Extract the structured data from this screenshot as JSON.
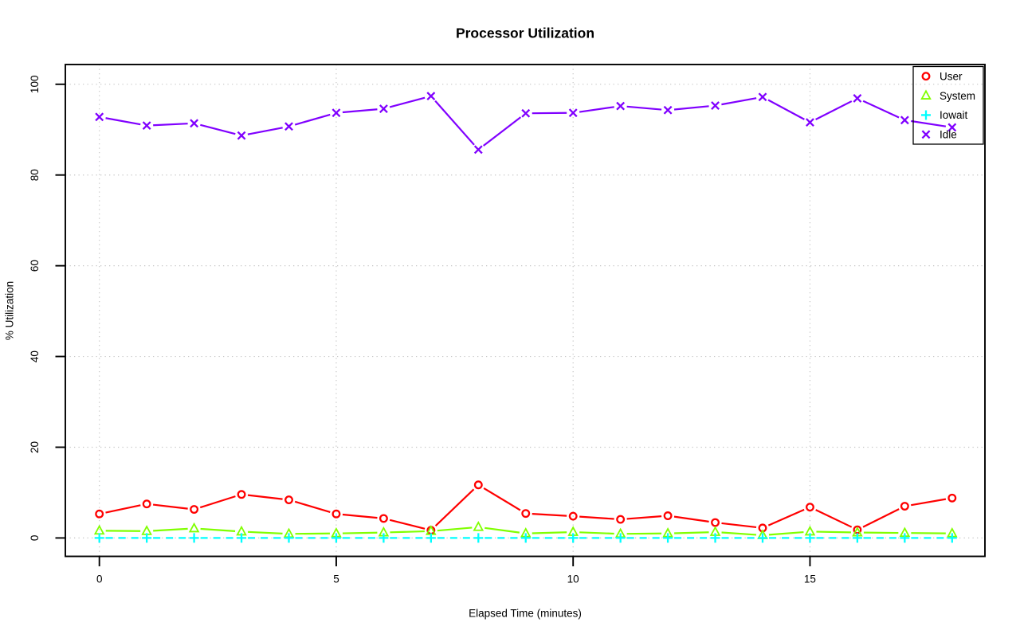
{
  "chart_data": {
    "type": "line",
    "title": "Processor Utilization",
    "xlabel": "Elapsed Time (minutes)",
    "ylabel": "% Utilization",
    "x": [
      0,
      1,
      2,
      3,
      4,
      5,
      6,
      7,
      8,
      9,
      10,
      11,
      12,
      13,
      14,
      15,
      16,
      17,
      18
    ],
    "xlim": [
      0,
      18
    ],
    "ylim": [
      0,
      100
    ],
    "x_ticks": [
      0,
      5,
      10,
      15
    ],
    "y_ticks": [
      0,
      20,
      40,
      60,
      80,
      100
    ],
    "grid": "dotted",
    "legend_position": "topright",
    "series": [
      {
        "name": "User",
        "color": "#FF0000",
        "marker": "circle",
        "line": "solid",
        "values": [
          5.3,
          7.5,
          6.3,
          9.6,
          8.4,
          5.3,
          4.3,
          1.7,
          11.7,
          5.4,
          4.8,
          4.1,
          4.9,
          3.4,
          2.2,
          6.8,
          1.8,
          7.0,
          8.8
        ]
      },
      {
        "name": "System",
        "color": "#80FF00",
        "marker": "triangle",
        "line": "solid",
        "values": [
          1.6,
          1.5,
          2.1,
          1.4,
          0.9,
          1.0,
          1.2,
          1.5,
          2.4,
          1.0,
          1.3,
          0.9,
          1.0,
          1.3,
          0.6,
          1.4,
          1.2,
          1.1,
          1.0
        ]
      },
      {
        "name": "Iowait",
        "color": "#00FFFF",
        "marker": "plus",
        "line": "dashed",
        "values": [
          0,
          0,
          0,
          0,
          0,
          0,
          0,
          0,
          0,
          0,
          0,
          0,
          0,
          0,
          0,
          0,
          0,
          0,
          0
        ]
      },
      {
        "name": "Idle",
        "color": "#8000FF",
        "marker": "x",
        "line": "solid",
        "values": [
          92.8,
          90.9,
          91.4,
          88.7,
          90.7,
          93.7,
          94.6,
          97.4,
          85.6,
          93.6,
          93.7,
          95.2,
          94.3,
          95.3,
          97.2,
          91.6,
          96.9,
          92.1,
          90.5
        ]
      }
    ]
  },
  "colors": {
    "axis": "#000000",
    "grid": "#C6C6C6",
    "background": "#FFFFFF"
  }
}
